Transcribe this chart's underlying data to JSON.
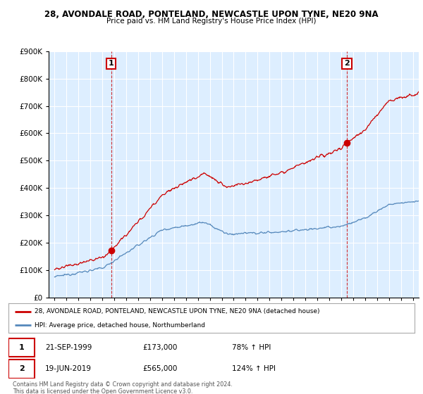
{
  "title1": "28, AVONDALE ROAD, PONTELAND, NEWCASTLE UPON TYNE, NE20 9NA",
  "title2": "Price paid vs. HM Land Registry's House Price Index (HPI)",
  "sale1_date": 1999.73,
  "sale1_price": 173000,
  "sale1_label": "21-SEP-1999",
  "sale1_pct": "78% ↑ HPI",
  "sale2_date": 2019.47,
  "sale2_price": 565000,
  "sale2_label": "19-JUN-2019",
  "sale2_pct": "124% ↑ HPI",
  "hpi_label": "HPI: Average price, detached house, Northumberland",
  "house_label": "28, AVONDALE ROAD, PONTELAND, NEWCASTLE UPON TYNE, NE20 9NA (detached house)",
  "footnote": "Contains HM Land Registry data © Crown copyright and database right 2024.\nThis data is licensed under the Open Government Licence v3.0.",
  "red_color": "#cc0000",
  "blue_color": "#5588bb",
  "plot_bg": "#ddeeff",
  "ylim": [
    0,
    900000
  ],
  "xlim": [
    1994.5,
    2025.5
  ],
  "background": "#ffffff",
  "grid_color": "#ffffff"
}
